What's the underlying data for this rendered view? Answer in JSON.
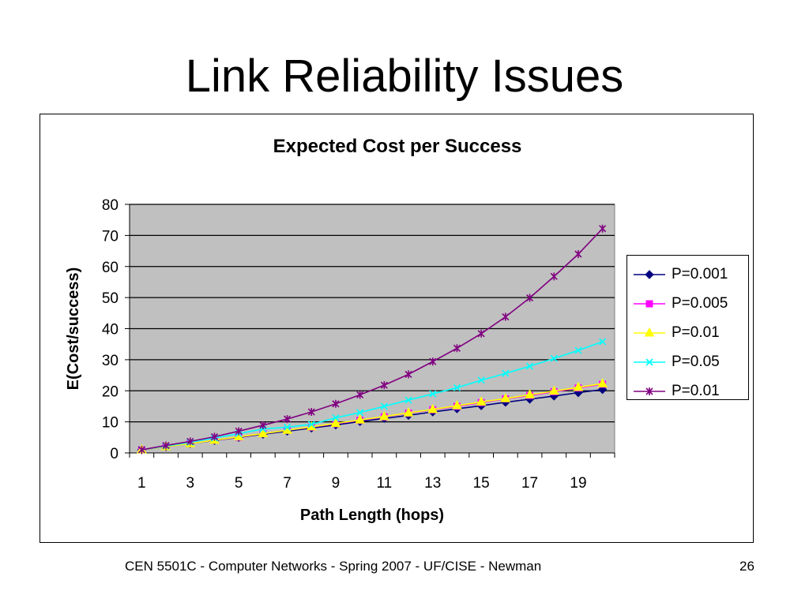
{
  "slide": {
    "title": "Link Reliability Issues",
    "footer": "CEN 5501C - Computer Networks - Spring 2007 - UF/CISE - Newman",
    "page_number": "26"
  },
  "chart_data": {
    "type": "line",
    "title": "Expected Cost per Success",
    "xlabel": "Path Length (hops)",
    "ylabel": "E(Cost/success)",
    "x": [
      1,
      2,
      3,
      4,
      5,
      6,
      7,
      8,
      9,
      10,
      11,
      12,
      13,
      14,
      15,
      16,
      17,
      18,
      19,
      20
    ],
    "x_tick_labels": [
      "1",
      "3",
      "5",
      "7",
      "9",
      "11",
      "13",
      "15",
      "17",
      "19"
    ],
    "y_tick_labels": [
      "0",
      "10",
      "20",
      "30",
      "40",
      "50",
      "60",
      "70",
      "80"
    ],
    "ylim": [
      0,
      80
    ],
    "xlim": [
      0.5,
      20.5
    ],
    "grid": "horizontal",
    "plot_background": "#c0c0c0",
    "legend_position": "right",
    "series": [
      {
        "name": "P=0.001",
        "color": "#000080",
        "marker": "diamond",
        "values": [
          1.0,
          2.0,
          3.0,
          4.0,
          5.0,
          6.0,
          7.0,
          8.0,
          9.0,
          10.1,
          11.1,
          12.1,
          13.2,
          14.2,
          15.2,
          16.3,
          17.3,
          18.3,
          19.4,
          20.4
        ]
      },
      {
        "name": "P=0.005",
        "color": "#ff00ff",
        "marker": "square",
        "values": [
          1.0,
          2.0,
          3.0,
          4.1,
          5.1,
          6.2,
          7.3,
          8.3,
          9.4,
          10.5,
          11.6,
          12.8,
          13.9,
          15.0,
          16.2,
          17.4,
          18.5,
          19.7,
          20.9,
          22.1
        ]
      },
      {
        "name": "P=0.01",
        "color": "#ffff00",
        "marker": "triangle",
        "values": [
          1.0,
          2.0,
          3.0,
          4.1,
          5.2,
          6.2,
          7.3,
          8.4,
          9.5,
          10.6,
          11.7,
          12.9,
          14.0,
          15.2,
          16.4,
          17.5,
          18.7,
          19.9,
          21.1,
          22.3
        ]
      },
      {
        "name": "P=0.05",
        "color": "#00ffff",
        "marker": "x",
        "values": [
          1.0,
          2.2,
          3.4,
          4.8,
          6.2,
          7.7,
          8.3,
          9.2,
          11.3,
          13.0,
          15.0,
          17.0,
          19.0,
          21.0,
          23.4,
          25.6,
          27.9,
          30.4,
          33.0,
          35.8
        ]
      },
      {
        "name": "P=0.01",
        "color": "#800080",
        "marker": "asterisk",
        "values": [
          1.0,
          2.4,
          3.7,
          5.2,
          7.0,
          8.9,
          10.9,
          13.2,
          15.8,
          18.7,
          21.8,
          25.3,
          29.4,
          33.7,
          38.4,
          43.8,
          49.9,
          56.8,
          64.0,
          72.2
        ]
      }
    ]
  }
}
